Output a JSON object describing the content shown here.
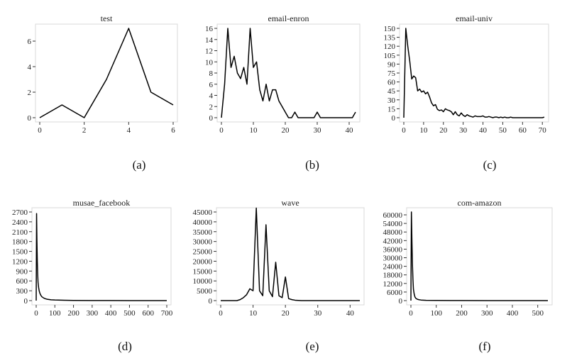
{
  "chart_data": [
    {
      "type": "line",
      "panel": "a",
      "title": "test",
      "caption": "(a)",
      "xlim": [
        0,
        6
      ],
      "ylim": [
        0,
        7
      ],
      "xticks": [
        0,
        2,
        4,
        6
      ],
      "yticks": [
        0,
        2,
        4,
        6
      ],
      "x": [
        0,
        1,
        2,
        3,
        4,
        5,
        6
      ],
      "series": [
        {
          "values": [
            0,
            1,
            0,
            3,
            7,
            2,
            1
          ]
        }
      ]
    },
    {
      "type": "line",
      "panel": "b",
      "title": "email-enron",
      "caption": "(b)",
      "xlim": [
        0,
        42
      ],
      "ylim": [
        0,
        16
      ],
      "xticks": [
        0,
        10,
        20,
        30,
        40
      ],
      "yticks": [
        0,
        2,
        4,
        6,
        8,
        10,
        12,
        14,
        16
      ],
      "x": [
        0,
        1,
        2,
        3,
        4,
        5,
        6,
        7,
        8,
        9,
        10,
        11,
        12,
        13,
        14,
        15,
        16,
        17,
        18,
        19,
        20,
        21,
        22,
        23,
        24,
        25,
        26,
        27,
        28,
        29,
        30,
        31,
        32,
        33,
        34,
        35,
        36,
        37,
        38,
        39,
        40,
        41,
        42
      ],
      "series": [
        {
          "values": [
            0,
            6,
            16,
            9,
            11,
            8,
            7,
            9,
            6,
            16,
            9,
            10,
            5,
            3,
            6,
            3,
            5,
            5,
            3,
            2,
            1,
            0,
            0,
            1,
            0,
            0,
            0,
            0,
            0,
            0,
            1,
            0,
            0,
            0,
            0,
            0,
            0,
            0,
            0,
            0,
            0,
            0,
            1
          ]
        }
      ]
    },
    {
      "type": "line",
      "panel": "c",
      "title": "email-univ",
      "caption": "(c)",
      "xlim": [
        0,
        71
      ],
      "ylim": [
        0,
        150
      ],
      "xticks": [
        0,
        10,
        20,
        30,
        40,
        50,
        60,
        70
      ],
      "yticks": [
        0,
        15,
        30,
        45,
        60,
        75,
        90,
        105,
        120,
        135,
        150
      ],
      "x": [
        0,
        1,
        2,
        3,
        4,
        5,
        6,
        7,
        8,
        9,
        10,
        11,
        12,
        13,
        14,
        15,
        16,
        17,
        18,
        19,
        20,
        21,
        22,
        23,
        24,
        25,
        26,
        27,
        28,
        29,
        30,
        31,
        32,
        33,
        34,
        35,
        36,
        37,
        38,
        39,
        40,
        41,
        42,
        43,
        44,
        45,
        46,
        47,
        48,
        49,
        50,
        51,
        52,
        53,
        54,
        55,
        56,
        57,
        58,
        59,
        60,
        61,
        62,
        63,
        64,
        65,
        66,
        67,
        68,
        69,
        70,
        71
      ],
      "series": [
        {
          "values": [
            0,
            150,
            120,
            95,
            65,
            70,
            67,
            45,
            48,
            43,
            45,
            40,
            43,
            35,
            25,
            20,
            22,
            14,
            12,
            13,
            10,
            15,
            13,
            12,
            10,
            5,
            10,
            5,
            3,
            8,
            4,
            2,
            5,
            3,
            2,
            1,
            3,
            2,
            2,
            2,
            3,
            1,
            1,
            2,
            1,
            0,
            1,
            1,
            0,
            1,
            0,
            1,
            0,
            0,
            1,
            0,
            0,
            0,
            0,
            0,
            0,
            0,
            0,
            0,
            0,
            0,
            0,
            0,
            0,
            0,
            0,
            1
          ]
        }
      ]
    },
    {
      "type": "line",
      "panel": "d",
      "title": "musae_facebook",
      "caption": "(d)",
      "xlim": [
        0,
        700
      ],
      "ylim": [
        0,
        2700
      ],
      "xticks": [
        0,
        100,
        200,
        300,
        400,
        500,
        600,
        700
      ],
      "yticks": [
        0,
        300,
        600,
        900,
        1200,
        1500,
        1800,
        2100,
        2400,
        2700
      ],
      "x": [
        0,
        2,
        4,
        6,
        8,
        10,
        13,
        16,
        20,
        25,
        30,
        40,
        50,
        60,
        80,
        100,
        150,
        200,
        300,
        400,
        500,
        600,
        700
      ],
      "series": [
        {
          "values": [
            0,
            2650,
            1800,
            1200,
            800,
            550,
            400,
            300,
            220,
            160,
            120,
            80,
            55,
            40,
            25,
            18,
            10,
            6,
            3,
            2,
            1,
            1,
            0
          ]
        }
      ]
    },
    {
      "type": "line",
      "panel": "e",
      "title": "wave",
      "caption": "(e)",
      "xlim": [
        0,
        43
      ],
      "ylim": [
        0,
        45000
      ],
      "xticks": [
        0,
        10,
        20,
        30,
        40
      ],
      "yticks": [
        0,
        5000,
        10000,
        15000,
        20000,
        25000,
        30000,
        35000,
        40000,
        45000
      ],
      "x": [
        0,
        1,
        2,
        3,
        4,
        5,
        6,
        7,
        8,
        9,
        10,
        11,
        12,
        13,
        14,
        15,
        16,
        17,
        18,
        19,
        20,
        21,
        22,
        23,
        24,
        25,
        26,
        27,
        28,
        29,
        30,
        31,
        32,
        33,
        34,
        35,
        36,
        37,
        38,
        39,
        40,
        41,
        42,
        43
      ],
      "series": [
        {
          "values": [
            0,
            0,
            0,
            0,
            0,
            0,
            500,
            1500,
            3000,
            6000,
            5000,
            47000,
            5000,
            2500,
            38500,
            5000,
            2000,
            19500,
            2500,
            1500,
            12000,
            1000,
            500,
            200,
            100,
            0,
            0,
            0,
            0,
            0,
            0,
            0,
            0,
            0,
            0,
            0,
            0,
            0,
            0,
            0,
            0,
            0,
            0,
            0
          ]
        }
      ]
    },
    {
      "type": "line",
      "panel": "f",
      "title": "com-amazon",
      "caption": "(f)",
      "xlim": [
        0,
        540
      ],
      "ylim": [
        0,
        62000
      ],
      "xticks": [
        0,
        100,
        200,
        300,
        400,
        500
      ],
      "yticks": [
        0,
        6000,
        12000,
        18000,
        24000,
        30000,
        36000,
        42000,
        48000,
        54000,
        60000
      ],
      "x": [
        0,
        2,
        4,
        6,
        8,
        10,
        13,
        16,
        20,
        25,
        30,
        40,
        60,
        100,
        200,
        300,
        400,
        540
      ],
      "series": [
        {
          "values": [
            0,
            62000,
            42000,
            26000,
            15000,
            8000,
            4500,
            2500,
            1500,
            1000,
            700,
            400,
            200,
            100,
            50,
            20,
            10,
            0
          ]
        }
      ]
    }
  ]
}
